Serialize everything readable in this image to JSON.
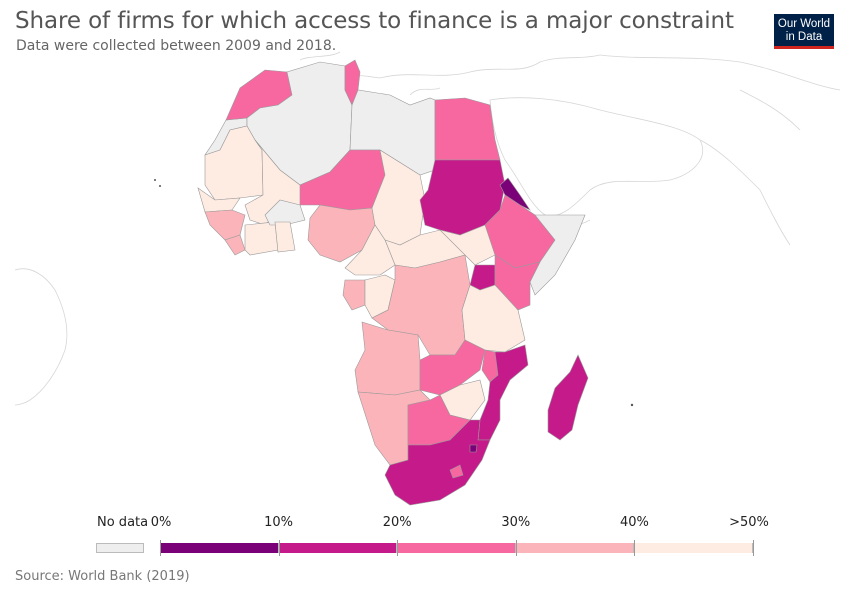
{
  "header": {
    "title": "Share of firms for which access to finance is a major constraint",
    "subtitle": "Data were collected between 2009 and 2018."
  },
  "logo": {
    "line1": "Our World",
    "line2": "in Data",
    "background": "#002147",
    "accent": "#ce261e"
  },
  "legend": {
    "no_data_label": "No data",
    "no_data_color": "#eeeeee",
    "ticks": [
      "0%",
      "10%",
      "20%",
      "30%",
      "40%",
      ">50%"
    ],
    "bins": [
      {
        "from": 0,
        "to": 10,
        "color": "#7a0177"
      },
      {
        "from": 10,
        "to": 20,
        "color": "#c51b8a"
      },
      {
        "from": 20,
        "to": 30,
        "color": "#f768a1"
      },
      {
        "from": 30,
        "to": 40,
        "color": "#fbb4b9"
      },
      {
        "from": 40,
        "to": 50,
        "color": "#feebe2"
      }
    ]
  },
  "map_data": {
    "region": "Africa",
    "countries": [
      {
        "name": "Morocco",
        "bin": 2
      },
      {
        "name": "Tunisia",
        "bin": 2
      },
      {
        "name": "Egypt",
        "bin": 2
      },
      {
        "name": "Mauritania",
        "bin": 4
      },
      {
        "name": "Mali",
        "bin": 4
      },
      {
        "name": "Niger",
        "bin": 2
      },
      {
        "name": "Chad",
        "bin": 4
      },
      {
        "name": "Sudan",
        "bin": 1
      },
      {
        "name": "Eritrea",
        "bin": 0
      },
      {
        "name": "Ethiopia",
        "bin": 2
      },
      {
        "name": "Nigeria",
        "bin": 3
      },
      {
        "name": "Central African Republic",
        "bin": 4
      },
      {
        "name": "South Sudan",
        "bin": 4
      },
      {
        "name": "Uganda",
        "bin": 1
      },
      {
        "name": "Kenya",
        "bin": 2
      },
      {
        "name": "DR Congo",
        "bin": 3
      },
      {
        "name": "Tanzania",
        "bin": 4
      },
      {
        "name": "Angola",
        "bin": 3
      },
      {
        "name": "Zambia",
        "bin": 2
      },
      {
        "name": "Malawi",
        "bin": 2
      },
      {
        "name": "Mozambique",
        "bin": 1
      },
      {
        "name": "Zimbabwe",
        "bin": 4
      },
      {
        "name": "Namibia",
        "bin": 3
      },
      {
        "name": "Botswana",
        "bin": 2
      },
      {
        "name": "South Africa",
        "bin": 1
      },
      {
        "name": "Madagascar",
        "bin": 1
      },
      {
        "name": "Algeria",
        "bin": -1
      },
      {
        "name": "Libya",
        "bin": -1
      },
      {
        "name": "Western Sahara",
        "bin": -1
      },
      {
        "name": "Somalia",
        "bin": -1
      },
      {
        "name": "Burkina Faso",
        "bin": -1
      }
    ]
  },
  "footer": {
    "source": "Source: World Bank (2019)"
  }
}
